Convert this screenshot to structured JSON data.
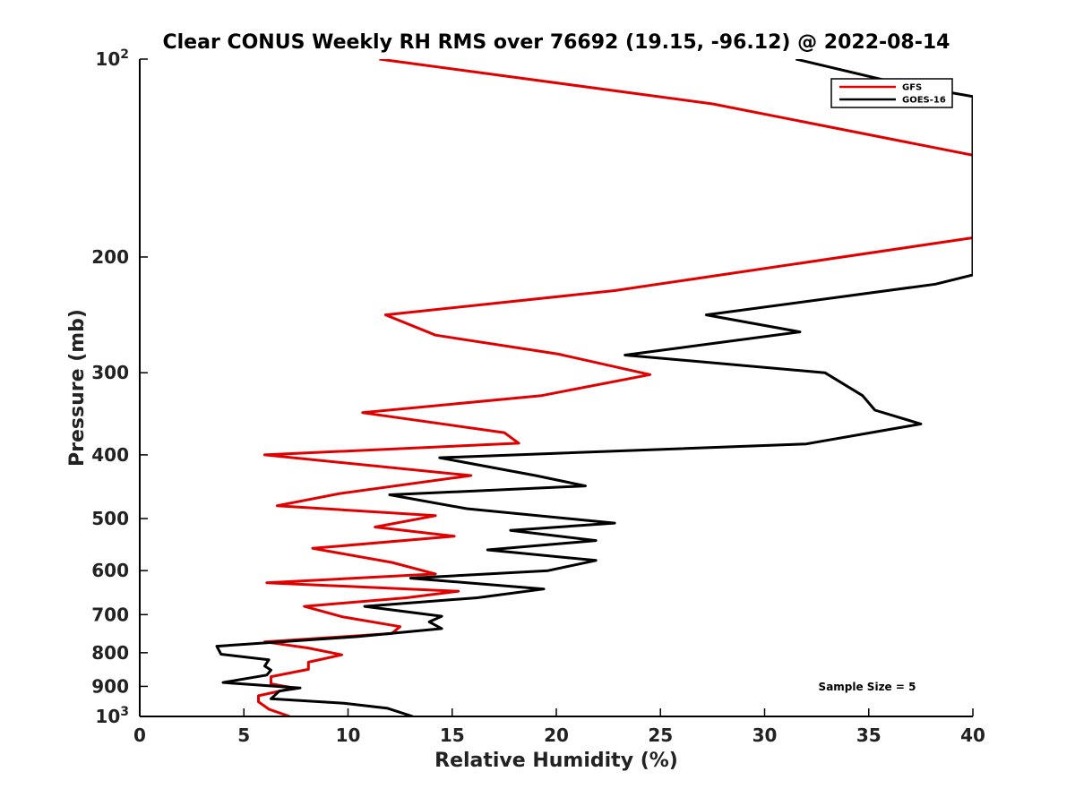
{
  "chart_data": {
    "type": "line",
    "title": "Clear CONUS Weekly RH RMS over 76692 (19.15, -96.12) @ 2022-08-14",
    "xlabel": "Relative Humidity (%)",
    "ylabel": "Pressure (mb)",
    "xlim": [
      0,
      40
    ],
    "ylim": [
      100,
      1000
    ],
    "yscale": "log",
    "y_reversed": true,
    "grid": false,
    "legend_position": "top-right",
    "x_ticks": [
      "0",
      "5",
      "10",
      "15",
      "20",
      "25",
      "30",
      "35",
      "40"
    ],
    "y_ticks": [
      {
        "value": 100,
        "base": "10",
        "exp": "2"
      },
      {
        "value": 200,
        "label": "200"
      },
      {
        "value": 300,
        "label": "300"
      },
      {
        "value": 400,
        "label": "400"
      },
      {
        "value": 500,
        "label": "500"
      },
      {
        "value": 600,
        "label": "600"
      },
      {
        "value": 700,
        "label": "700"
      },
      {
        "value": 800,
        "label": "800"
      },
      {
        "value": 900,
        "label": "900"
      },
      {
        "value": 1000,
        "base": "10",
        "exp": "3"
      }
    ],
    "series": [
      {
        "name": "GFS",
        "color": "#e00000",
        "points": [
          [
            11.5,
            100
          ],
          [
            27.5,
            117
          ],
          [
            40,
            140
          ],
          [
            40,
            187
          ],
          [
            22.8,
            225
          ],
          [
            11.8,
            245
          ],
          [
            14.2,
            263
          ],
          [
            20.1,
            281
          ],
          [
            24.5,
            302
          ],
          [
            19.3,
            325
          ],
          [
            10.7,
            345
          ],
          [
            17.5,
            370
          ],
          [
            18.2,
            384
          ],
          [
            6,
            400
          ],
          [
            15.9,
            430
          ],
          [
            9.6,
            458
          ],
          [
            6.6,
            478
          ],
          [
            14.2,
            495
          ],
          [
            11.3,
            515
          ],
          [
            15.1,
            532
          ],
          [
            8.3,
            555
          ],
          [
            12.1,
            583
          ],
          [
            14.2,
            607
          ],
          [
            6.1,
            626
          ],
          [
            15.3,
            645
          ],
          [
            12.8,
            660
          ],
          [
            7.9,
            680
          ],
          [
            9.7,
            705
          ],
          [
            12.5,
            730
          ],
          [
            12.1,
            748
          ],
          [
            6,
            770
          ],
          [
            8.1,
            787
          ],
          [
            9.7,
            806
          ],
          [
            8.1,
            827
          ],
          [
            8.1,
            848
          ],
          [
            6.3,
            870
          ],
          [
            6.3,
            892
          ],
          [
            7.4,
            905
          ],
          [
            5.7,
            930
          ],
          [
            5.7,
            950
          ],
          [
            6.2,
            975
          ],
          [
            7.2,
            1000
          ]
        ]
      },
      {
        "name": "GOES-16",
        "color": "#000000",
        "points": [
          [
            31.5,
            100
          ],
          [
            36.5,
            109
          ],
          [
            40,
            114
          ],
          [
            40,
            213
          ],
          [
            38.2,
            220
          ],
          [
            27.2,
            245
          ],
          [
            31.7,
            260
          ],
          [
            23.3,
            282
          ],
          [
            32.9,
            300
          ],
          [
            34.7,
            325
          ],
          [
            35.3,
            342
          ],
          [
            37.5,
            359
          ],
          [
            32,
            385
          ],
          [
            14.4,
            404
          ],
          [
            19,
            430
          ],
          [
            21.4,
            446
          ],
          [
            12,
            460
          ],
          [
            15.7,
            483
          ],
          [
            22.8,
            508
          ],
          [
            17.8,
            521
          ],
          [
            21.9,
            540
          ],
          [
            16.7,
            558
          ],
          [
            21.9,
            579
          ],
          [
            19.6,
            600
          ],
          [
            13,
            616
          ],
          [
            19.4,
            640
          ],
          [
            16.2,
            660
          ],
          [
            10.8,
            680
          ],
          [
            14.5,
            704
          ],
          [
            13.9,
            718
          ],
          [
            14.5,
            735
          ],
          [
            10.5,
            756
          ],
          [
            3.7,
            782
          ],
          [
            3.9,
            804
          ],
          [
            6.2,
            820
          ],
          [
            6,
            838
          ],
          [
            6.3,
            850
          ],
          [
            6.1,
            865
          ],
          [
            4,
            888
          ],
          [
            7.7,
            905
          ],
          [
            6.7,
            915
          ],
          [
            6.3,
            940
          ],
          [
            9.8,
            955
          ],
          [
            11.9,
            972
          ],
          [
            13.1,
            1000
          ]
        ]
      }
    ],
    "annotation": "Sample Size = 5"
  }
}
